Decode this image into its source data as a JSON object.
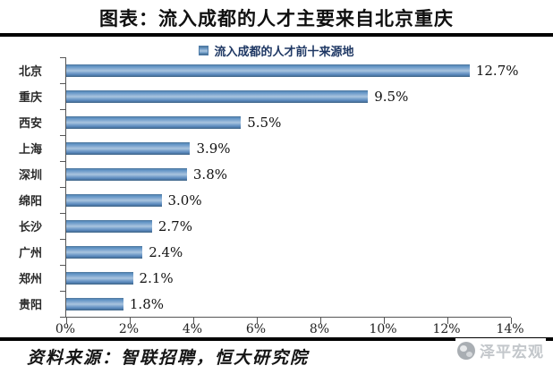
{
  "header": {
    "title": "图表：流入成都的人才主要来自北京重庆"
  },
  "chart_data": {
    "type": "bar",
    "orientation": "horizontal",
    "title": "流入成都的人才前十来源地",
    "legend_position": "top",
    "categories": [
      "北京",
      "重庆",
      "西安",
      "上海",
      "深圳",
      "绵阳",
      "长沙",
      "广州",
      "郑州",
      "贵阳"
    ],
    "values": [
      12.7,
      9.5,
      5.5,
      3.9,
      3.8,
      3.0,
      2.7,
      2.4,
      2.1,
      1.8
    ],
    "data_labels": [
      "12.7%",
      "9.5%",
      "5.5%",
      "3.9%",
      "3.8%",
      "3.0%",
      "2.7%",
      "2.4%",
      "2.1%",
      "1.8%"
    ],
    "xticks": [
      "0%",
      "2%",
      "4%",
      "6%",
      "8%",
      "10%",
      "12%",
      "14%"
    ],
    "xlim": [
      0,
      14
    ],
    "xlabel": "",
    "ylabel": "",
    "grid": false,
    "bar_color": "#6d9bc9",
    "bar_color_light": "#aac5de",
    "bar_color_dark": "#3e6384"
  },
  "footer": {
    "source": "资料来源：智联招聘，恒大研究院",
    "watermark": "泽平宏观"
  }
}
